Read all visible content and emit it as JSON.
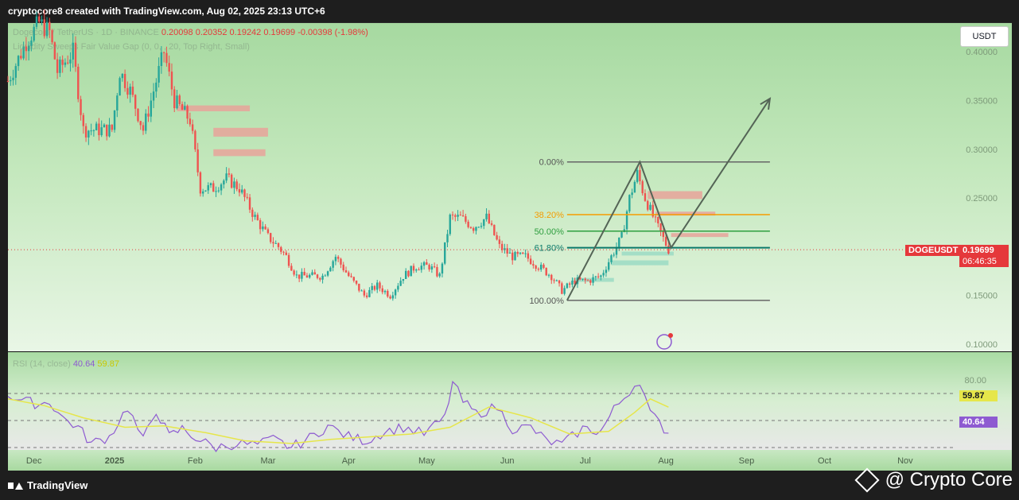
{
  "header": {
    "attribution": "cryptocore8 created with TradingView.com, Aug 02, 2025 23:13 UTC+6"
  },
  "legend": {
    "symbol_faint": "Dogecoin / TetherUS · 1D · BINANCE",
    "ohlc": [
      "0.20098",
      "0.20352",
      "0.19242",
      "0.19699",
      "-0.00398 (-1.98%)"
    ],
    "indicator_faint": "Liquidity Sweeps Fair Value Gap (0, 0, , 20, Top Right, Small)",
    "rsi_faint": "RSI (14, close)",
    "rsi_value": "40.64",
    "rsi_ma_value": "59.87"
  },
  "currency_button": "USDT",
  "price_axis": [
    "0.40000",
    "0.35000",
    "0.30000",
    "0.25000",
    "0.15000",
    "0.10000"
  ],
  "current_price": {
    "symbol": "DOGEUSDT",
    "price": "0.19699",
    "countdown": "06:46:35"
  },
  "rsi_axis": {
    "level_80": "80.00",
    "ma_tag": "59.87",
    "rsi_tag": "40.64"
  },
  "time_axis": [
    "Dec",
    "2025",
    "Feb",
    "Mar",
    "Apr",
    "May",
    "Jun",
    "Jul",
    "Aug",
    "Sep",
    "Oct",
    "Nov"
  ],
  "fib_labels": [
    "0.00%",
    "38.20%",
    "50.00%",
    "61.80%",
    "100.00%"
  ],
  "footer": {
    "brand": "TradingView",
    "credit": "@ Crypto Core"
  },
  "colors": {
    "up": "#26a69a",
    "down": "#ef5350",
    "fib_orange": "#f59c00",
    "fib_green": "#2e9e3f",
    "fib_teal": "#0e7a6b",
    "rsi_line": "#8e5bd1",
    "rsi_ma": "#e6e64a",
    "price_tag": "#e5383b"
  },
  "chart_data": {
    "type": "candlestick",
    "symbol": "DOGEUSDT",
    "period": "1D",
    "ylim": [
      0.1,
      0.42
    ],
    "x_range": [
      "2024-11-21",
      "2025-11-20"
    ],
    "close_series": [
      [
        "2024-11-21",
        0.37
      ],
      [
        "2024-11-28",
        0.41
      ],
      [
        "2024-12-03",
        0.43
      ],
      [
        "2024-12-07",
        0.42
      ],
      [
        "2024-12-10",
        0.38
      ],
      [
        "2024-12-16",
        0.4
      ],
      [
        "2024-12-20",
        0.32
      ],
      [
        "2024-12-25",
        0.32
      ],
      [
        "2024-12-31",
        0.32
      ],
      [
        "2025-01-03",
        0.38
      ],
      [
        "2025-01-07",
        0.36
      ],
      [
        "2025-01-12",
        0.32
      ],
      [
        "2025-01-15",
        0.35
      ],
      [
        "2025-01-18",
        0.38
      ],
      [
        "2025-01-20",
        0.4
      ],
      [
        "2025-01-24",
        0.35
      ],
      [
        "2025-01-30",
        0.33
      ],
      [
        "2025-02-03",
        0.26
      ],
      [
        "2025-02-08",
        0.26
      ],
      [
        "2025-02-13",
        0.27
      ],
      [
        "2025-02-18",
        0.26
      ],
      [
        "2025-02-24",
        0.23
      ],
      [
        "2025-03-01",
        0.21
      ],
      [
        "2025-03-05",
        0.2
      ],
      [
        "2025-03-08",
        0.19
      ],
      [
        "2025-03-12",
        0.17
      ],
      [
        "2025-03-16",
        0.17
      ],
      [
        "2025-03-22",
        0.17
      ],
      [
        "2025-03-27",
        0.19
      ],
      [
        "2025-04-01",
        0.17
      ],
      [
        "2025-04-07",
        0.15
      ],
      [
        "2025-04-12",
        0.16
      ],
      [
        "2025-04-17",
        0.15
      ],
      [
        "2025-04-22",
        0.17
      ],
      [
        "2025-04-27",
        0.18
      ],
      [
        "2025-05-02",
        0.18
      ],
      [
        "2025-05-06",
        0.17
      ],
      [
        "2025-05-10",
        0.23
      ],
      [
        "2025-05-14",
        0.23
      ],
      [
        "2025-05-19",
        0.22
      ],
      [
        "2025-05-24",
        0.23
      ],
      [
        "2025-05-29",
        0.2
      ],
      [
        "2025-06-03",
        0.19
      ],
      [
        "2025-06-08",
        0.19
      ],
      [
        "2025-06-13",
        0.18
      ],
      [
        "2025-06-18",
        0.17
      ],
      [
        "2025-06-22",
        0.155
      ],
      [
        "2025-06-27",
        0.165
      ],
      [
        "2025-07-02",
        0.165
      ],
      [
        "2025-07-07",
        0.17
      ],
      [
        "2025-07-11",
        0.19
      ],
      [
        "2025-07-15",
        0.21
      ],
      [
        "2025-07-18",
        0.25
      ],
      [
        "2025-07-21",
        0.275
      ],
      [
        "2025-07-24",
        0.25
      ],
      [
        "2025-07-28",
        0.225
      ],
      [
        "2025-08-02",
        0.197
      ]
    ],
    "current_price": 0.19699,
    "fibonacci": {
      "high": 0.287,
      "low": 0.145,
      "levels": [
        {
          "label": "0.00%",
          "price": 0.287
        },
        {
          "label": "38.20%",
          "price": 0.233
        },
        {
          "label": "50.00%",
          "price": 0.216
        },
        {
          "label": "61.80%",
          "price": 0.199
        },
        {
          "label": "100.00%",
          "price": 0.145
        }
      ]
    },
    "projection_path": [
      [
        "2025-06-24",
        0.145
      ],
      [
        "2025-07-22",
        0.287
      ],
      [
        "2025-08-03",
        0.199
      ],
      [
        "2025-09-10",
        0.352
      ]
    ],
    "supply_zones": [
      {
        "from": "2025-01-25",
        "to": "2025-02-22",
        "low": 0.339,
        "high": 0.345
      },
      {
        "from": "2025-02-08",
        "to": "2025-03-01",
        "low": 0.313,
        "high": 0.322
      },
      {
        "from": "2025-02-08",
        "to": "2025-02-28",
        "low": 0.293,
        "high": 0.3
      },
      {
        "from": "2025-07-25",
        "to": "2025-08-15",
        "low": 0.249,
        "high": 0.257
      },
      {
        "from": "2025-07-28",
        "to": "2025-08-20",
        "low": 0.232,
        "high": 0.236
      },
      {
        "from": "2025-08-03",
        "to": "2025-08-25",
        "low": 0.21,
        "high": 0.214
      }
    ],
    "demand_zones": [
      {
        "from": "2025-07-15",
        "to": "2025-08-04",
        "low": 0.191,
        "high": 0.195
      },
      {
        "from": "2025-07-11",
        "to": "2025-08-02",
        "low": 0.181,
        "high": 0.186
      },
      {
        "from": "2025-06-26",
        "to": "2025-07-12",
        "low": 0.164,
        "high": 0.168
      }
    ],
    "rsi": {
      "params": "14, close",
      "latest": 40.64,
      "ma_latest": 59.87,
      "levels": [
        70,
        50,
        30
      ],
      "series": [
        [
          "2024-11-21",
          69
        ],
        [
          "2024-11-28",
          64
        ],
        [
          "2024-12-03",
          62
        ],
        [
          "2024-12-07",
          64
        ],
        [
          "2024-12-12",
          52
        ],
        [
          "2024-12-18",
          45
        ],
        [
          "2024-12-23",
          33
        ],
        [
          "2024-12-30",
          38
        ],
        [
          "2025-01-06",
          60
        ],
        [
          "2025-01-12",
          35
        ],
        [
          "2025-01-17",
          58
        ],
        [
          "2025-01-22",
          38
        ],
        [
          "2025-01-27",
          44
        ],
        [
          "2025-02-03",
          35
        ],
        [
          "2025-02-09",
          30
        ],
        [
          "2025-02-17",
          33
        ],
        [
          "2025-02-25",
          32
        ],
        [
          "2025-03-03",
          36
        ],
        [
          "2025-03-10",
          30
        ],
        [
          "2025-03-17",
          37
        ],
        [
          "2025-03-24",
          46
        ],
        [
          "2025-04-01",
          38
        ],
        [
          "2025-04-08",
          35
        ],
        [
          "2025-04-15",
          42
        ],
        [
          "2025-04-22",
          45
        ],
        [
          "2025-04-30",
          40
        ],
        [
          "2025-05-08",
          52
        ],
        [
          "2025-05-11",
          78
        ],
        [
          "2025-05-15",
          64
        ],
        [
          "2025-05-20",
          55
        ],
        [
          "2025-05-28",
          60
        ],
        [
          "2025-06-03",
          44
        ],
        [
          "2025-06-10",
          45
        ],
        [
          "2025-06-16",
          35
        ],
        [
          "2025-06-22",
          32
        ],
        [
          "2025-06-30",
          44
        ],
        [
          "2025-07-07",
          42
        ],
        [
          "2025-07-12",
          58
        ],
        [
          "2025-07-18",
          72
        ],
        [
          "2025-07-22",
          80
        ],
        [
          "2025-07-26",
          55
        ],
        [
          "2025-08-02",
          40.64
        ]
      ],
      "ma_series": [
        [
          "2024-11-21",
          66
        ],
        [
          "2024-12-05",
          61
        ],
        [
          "2024-12-20",
          52
        ],
        [
          "2025-01-05",
          45
        ],
        [
          "2025-01-20",
          46
        ],
        [
          "2025-02-05",
          41
        ],
        [
          "2025-02-20",
          35
        ],
        [
          "2025-03-10",
          33
        ],
        [
          "2025-03-25",
          36
        ],
        [
          "2025-04-10",
          38
        ],
        [
          "2025-04-25",
          40
        ],
        [
          "2025-05-10",
          45
        ],
        [
          "2025-05-25",
          60
        ],
        [
          "2025-06-10",
          52
        ],
        [
          "2025-06-25",
          40
        ],
        [
          "2025-07-10",
          42
        ],
        [
          "2025-07-20",
          56
        ],
        [
          "2025-07-26",
          66
        ],
        [
          "2025-08-02",
          59.87
        ]
      ]
    }
  }
}
